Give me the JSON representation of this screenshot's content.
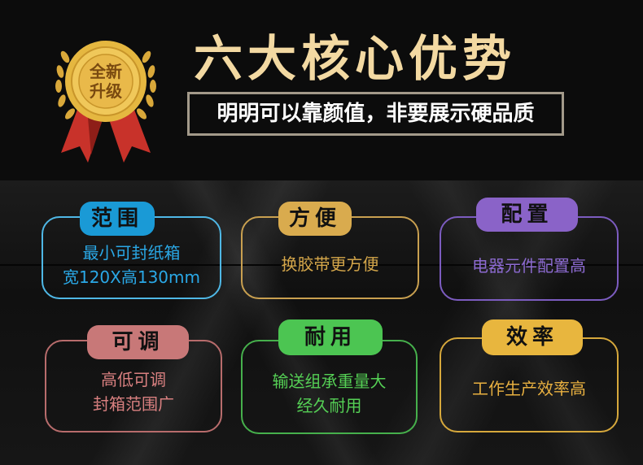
{
  "header": {
    "badge_text": "全新升级",
    "title": "六大核心优势",
    "subtitle": "明明可以靠颜值，非要展示硬品质"
  },
  "colors": {
    "title": "#f3d9a2",
    "blue": "#1a9ad6",
    "gold": "#d9ab4e",
    "purple": "#8a63c8",
    "pink": "#c87878",
    "green": "#4cc552",
    "yellow": "#e8b63e"
  },
  "cards": [
    {
      "tag": "范围",
      "lines": [
        "最小可封纸箱",
        "宽120X高130mm"
      ]
    },
    {
      "tag": "方便",
      "lines": [
        "换胶带更方便"
      ]
    },
    {
      "tag": "配置",
      "lines": [
        "电器元件配置高"
      ]
    },
    {
      "tag": "可调",
      "lines": [
        "高低可调",
        "封箱范围广"
      ]
    },
    {
      "tag": "耐用",
      "lines": [
        "输送组承重量大",
        "经久耐用"
      ]
    },
    {
      "tag": "效率",
      "lines": [
        "工作生产效率高"
      ]
    }
  ]
}
